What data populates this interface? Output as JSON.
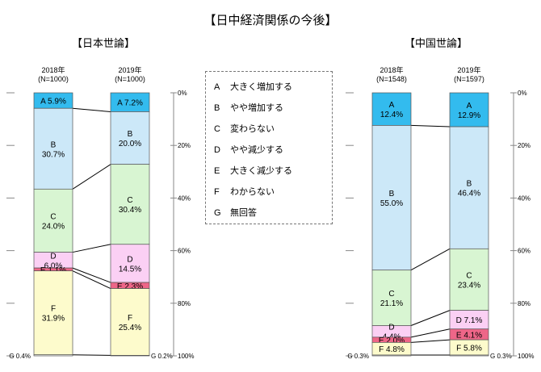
{
  "title": "【日中経済関係の今後】",
  "legend": [
    {
      "key": "A",
      "label": "大きく増加する"
    },
    {
      "key": "B",
      "label": "やや増加する"
    },
    {
      "key": "C",
      "label": "変わらない"
    },
    {
      "key": "D",
      "label": "やや減少する"
    },
    {
      "key": "E",
      "label": "大きく減少する"
    },
    {
      "key": "F",
      "label": "わからない"
    },
    {
      "key": "G",
      "label": "無回答"
    }
  ],
  "colors": {
    "A": "#33bbee",
    "B": "#cce8f8",
    "C": "#d8f5d2",
    "D": "#fbd0f4",
    "E": "#ee6688",
    "F": "#fdfbcc",
    "G": "#ffffff"
  },
  "chart_data": [
    {
      "type": "bar",
      "title": "【日本世論】",
      "categories": [
        "2018年\n(N=1000)",
        "2019年\n(N=1000)"
      ],
      "series": [
        {
          "name": "A",
          "values": [
            5.9,
            7.2
          ]
        },
        {
          "name": "B",
          "values": [
            30.7,
            20.0
          ]
        },
        {
          "name": "C",
          "values": [
            24.0,
            30.4
          ]
        },
        {
          "name": "D",
          "values": [
            6.0,
            14.5
          ]
        },
        {
          "name": "E",
          "values": [
            1.1,
            2.3
          ]
        },
        {
          "name": "F",
          "values": [
            31.9,
            25.4
          ]
        },
        {
          "name": "G",
          "values": [
            0.4,
            0.2
          ]
        }
      ],
      "labels": [
        [
          "A 5.9%",
          "B\n30.7%",
          "C\n24.0%",
          "D\n6.0%",
          "E 1.1%",
          "F\n31.9%",
          "G 0.4%"
        ],
        [
          "A 7.2%",
          "B\n20.0%",
          "C\n30.4%",
          "D\n14.5%",
          "E 2.3%",
          "F\n25.4%",
          "G 0.2%"
        ]
      ],
      "ylim": [
        0,
        100
      ],
      "yticks": [
        "0%",
        "20%",
        "40%",
        "60%",
        "80%",
        "100%"
      ]
    },
    {
      "type": "bar",
      "title": "【中国世論】",
      "categories": [
        "2018年\n(N=1548)",
        "2019年\n(N=1597)"
      ],
      "series": [
        {
          "name": "A",
          "values": [
            12.4,
            12.9
          ]
        },
        {
          "name": "B",
          "values": [
            55.0,
            46.4
          ]
        },
        {
          "name": "C",
          "values": [
            21.1,
            23.4
          ]
        },
        {
          "name": "D",
          "values": [
            4.4,
            7.1
          ]
        },
        {
          "name": "E",
          "values": [
            2.0,
            4.1
          ]
        },
        {
          "name": "F",
          "values": [
            4.8,
            5.8
          ]
        },
        {
          "name": "G",
          "values": [
            0.3,
            0.3
          ]
        }
      ],
      "labels": [
        [
          "A\n12.4%",
          "B\n55.0%",
          "C\n21.1%",
          "D\n4.4%",
          "E 2.0%",
          "F 4.8%",
          "G 0.3%"
        ],
        [
          "A\n12.9%",
          "B\n46.4%",
          "C\n23.4%",
          "D 7.1%",
          "E 4.1%",
          "F 5.8%",
          "G 0.3%"
        ]
      ],
      "ylim": [
        0,
        100
      ],
      "yticks": [
        "0%",
        "20%",
        "40%",
        "60%",
        "80%",
        "100%"
      ]
    }
  ]
}
